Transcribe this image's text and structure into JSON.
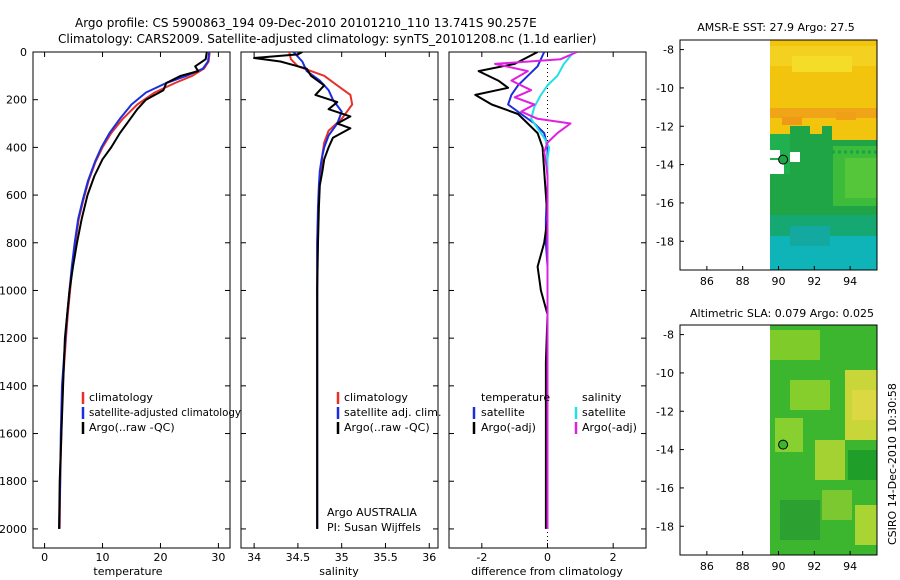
{
  "header": {
    "line1": "Argo profile: CS 5900863_194 09-Dec-2010 20101210_110 13.741S 90.257E",
    "line2": "Climatology: CARS2009. Satellite-adjusted climatology: synTS_20101208.nc (1.1d earlier)"
  },
  "footer": {
    "org": "Argo AUSTRALIA",
    "pi": "PI: Susan Wijffels",
    "stamp": "CSIRO 14-Dec-2010 10:30:58"
  },
  "colors": {
    "clim": "#e8302a",
    "sat": "#1a2ee0",
    "argo": "#000000",
    "salsat": "#22e0ea",
    "salargo": "#e020e0"
  },
  "chart_data": [
    {
      "id": "temperature",
      "type": "line",
      "xlabel": "temperature",
      "xlim": [
        -2,
        32
      ],
      "ylim": [
        0,
        2080
      ],
      "xticks": [
        0,
        10,
        20,
        30
      ],
      "yticks": [
        0,
        200,
        400,
        600,
        800,
        1000,
        1200,
        1400,
        1600,
        1800,
        2000
      ],
      "legend": [
        "climatology",
        "satellite-adjusted climatology",
        "Argo(..raw -QC)"
      ],
      "series": [
        {
          "name": "climatology",
          "color": "clim",
          "x": [
            28.5,
            28.3,
            27.5,
            25.5,
            22.5,
            19,
            16,
            13.5,
            11.5,
            10,
            8.8,
            7.6,
            6.7,
            5.9,
            5.3,
            4.8,
            4.4,
            4,
            3.7,
            3.4,
            3.1,
            2.9,
            2.7,
            2.6
          ],
          "y": [
            0,
            40,
            70,
            100,
            130,
            170,
            220,
            280,
            340,
            400,
            460,
            540,
            620,
            700,
            800,
            900,
            1000,
            1100,
            1200,
            1300,
            1400,
            1600,
            1800,
            2000
          ]
        },
        {
          "name": "satellite-adjusted climatology",
          "color": "sat",
          "x": [
            28.4,
            28.2,
            27.3,
            24.5,
            21,
            17.5,
            15,
            13,
            11.2,
            9.8,
            8.7,
            7.5,
            6.6,
            5.8,
            5.2,
            4.7,
            4.3,
            3.9,
            3.6,
            3.3,
            3,
            2.8,
            2.7,
            2.5
          ],
          "y": [
            0,
            40,
            70,
            100,
            130,
            170,
            220,
            280,
            340,
            400,
            460,
            540,
            620,
            700,
            800,
            900,
            1000,
            1100,
            1200,
            1300,
            1400,
            1600,
            1800,
            2000
          ]
        },
        {
          "name": "Argo(..raw -QC)",
          "color": "argo",
          "x": [
            28,
            27.8,
            26,
            26.5,
            23.5,
            21,
            20.5,
            17.5,
            16,
            14.5,
            13,
            11.5,
            10,
            8.6,
            7.4,
            6.4,
            5.6,
            4.9,
            4.3,
            3.9,
            3.5,
            3.2,
            2.9,
            2.6,
            2.5
          ],
          "y": [
            0,
            30,
            60,
            80,
            100,
            130,
            160,
            200,
            240,
            290,
            340,
            400,
            450,
            520,
            600,
            700,
            800,
            900,
            1000,
            1100,
            1200,
            1400,
            1600,
            1800,
            2000
          ]
        }
      ]
    },
    {
      "id": "salinity",
      "type": "line",
      "xlabel": "salinity",
      "xlim": [
        33.85,
        36.1
      ],
      "ylim": [
        0,
        2080
      ],
      "xticks": [
        34,
        34.5,
        35,
        35.5,
        36
      ],
      "xticklabels": [
        "34",
        "34.5",
        "35",
        "35.5",
        "36"
      ],
      "legend": [
        "climatology",
        "satellite adj. clim.",
        "Argo(..raw -QC)"
      ],
      "series": [
        {
          "name": "climatology",
          "color": "clim",
          "x": [
            34.4,
            34.42,
            34.5,
            34.8,
            34.95,
            35.1,
            35.12,
            35,
            34.85,
            34.8,
            34.78,
            34.77,
            34.75,
            34.74,
            34.73,
            34.72,
            34.72,
            34.72,
            34.72,
            34.72,
            34.72,
            34.72,
            34.72,
            34.72
          ],
          "y": [
            0,
            30,
            60,
            100,
            140,
            180,
            220,
            280,
            330,
            380,
            430,
            480,
            530,
            600,
            700,
            800,
            900,
            1000,
            1200,
            1400,
            1600,
            1800,
            1900,
            2000
          ]
        },
        {
          "name": "satellite adj. clim.",
          "color": "sat",
          "x": [
            34.45,
            34.55,
            34.6,
            34.75,
            34.85,
            34.9,
            35,
            34.95,
            34.85,
            34.8,
            34.77,
            34.75,
            34.74,
            34.73,
            34.72,
            34.72,
            34.72,
            34.72,
            34.72,
            34.72,
            34.72
          ],
          "y": [
            0,
            40,
            80,
            120,
            160,
            200,
            250,
            300,
            350,
            400,
            450,
            500,
            560,
            650,
            800,
            1000,
            1200,
            1400,
            1600,
            1800,
            2000
          ]
        },
        {
          "name": "Argo(..raw -QC)",
          "color": "argo",
          "x": [
            34.55,
            34.5,
            34.0,
            34.3,
            34.6,
            34.65,
            34.8,
            34.7,
            34.95,
            34.85,
            35.1,
            34.95,
            35.1,
            34.9,
            34.85,
            34.8,
            34.78,
            34.75,
            34.74,
            34.73,
            34.72,
            34.72,
            34.72,
            34.72
          ],
          "y": [
            0,
            10,
            25,
            40,
            70,
            100,
            140,
            180,
            210,
            240,
            270,
            300,
            320,
            360,
            400,
            450,
            500,
            560,
            650,
            800,
            1000,
            1200,
            1600,
            2000
          ]
        }
      ]
    },
    {
      "id": "difference",
      "type": "line",
      "xlabel": "difference from climatology",
      "xlim": [
        -3,
        3
      ],
      "ylim": [
        0,
        2080
      ],
      "xticks": [
        -2,
        0,
        2
      ],
      "legend_temperature": {
        "title": "temperature",
        "items": [
          "satellite",
          "Argo(-adj)"
        ]
      },
      "legend_salinity": {
        "title": "salinity",
        "items": [
          "satellite",
          "Argo(-adj)"
        ]
      },
      "series": [
        {
          "name": "temperature satellite",
          "color": "sat",
          "x": [
            -0.1,
            -0.3,
            -0.6,
            -0.9,
            -1.1,
            -1.2,
            -0.8,
            -0.4,
            -0.1,
            0,
            0,
            0,
            -0.05,
            -0.05,
            0,
            0,
            0,
            0,
            0,
            0
          ],
          "y": [
            0,
            60,
            100,
            140,
            180,
            220,
            260,
            300,
            340,
            400,
            480,
            560,
            700,
            800,
            900,
            1000,
            1200,
            1400,
            1600,
            2000
          ]
        },
        {
          "name": "temperature Argo(-adj)",
          "color": "argo",
          "x": [
            -0.3,
            -1,
            -2.1,
            -1.5,
            -1.2,
            -2.2,
            -1.7,
            -0.9,
            -0.6,
            -0.3,
            -0.15,
            -0.1,
            -0.05,
            0,
            -0.1,
            -0.3,
            -0.2,
            0,
            -0.05,
            -0.05,
            -0.05,
            -0.05
          ],
          "y": [
            0,
            50,
            80,
            120,
            150,
            180,
            220,
            260,
            300,
            340,
            400,
            500,
            600,
            700,
            800,
            900,
            1000,
            1100,
            1300,
            1600,
            1800,
            2000
          ]
        },
        {
          "name": "salinity satellite",
          "color": "salsat",
          "x": [
            0.8,
            0.5,
            0.3,
            0.0,
            -0.2,
            -0.4,
            -0.5,
            -0.3,
            -0.1,
            0.05,
            0,
            0,
            0,
            0,
            0,
            0,
            0
          ],
          "y": [
            0,
            50,
            100,
            140,
            180,
            230,
            280,
            320,
            360,
            400,
            450,
            500,
            700,
            1000,
            1400,
            1800,
            2000
          ]
        },
        {
          "name": "salinity Argo(-adj)",
          "color": "salargo",
          "x": [
            0.9,
            0.4,
            -1.6,
            -0.6,
            -1.1,
            -0.5,
            -1.0,
            -0.4,
            -0.8,
            -0.3,
            0.7,
            0.3,
            0,
            -0.1,
            -0.05,
            0,
            0,
            0,
            0
          ],
          "y": [
            0,
            30,
            50,
            80,
            120,
            160,
            190,
            220,
            250,
            280,
            300,
            340,
            380,
            420,
            460,
            520,
            800,
            1500,
            2000
          ]
        }
      ]
    }
  ],
  "maps": [
    {
      "id": "sst",
      "title": "AMSR-E SST: 27.9 Argo: 27.5",
      "xlim": [
        84.5,
        95.5
      ],
      "ylim": [
        -19.5,
        -7.5
      ],
      "xticks": [
        86,
        88,
        90,
        92,
        94
      ],
      "yticks": [
        -8,
        -10,
        -12,
        -14,
        -16,
        -18
      ],
      "marker": {
        "lon": 90.257,
        "lat": -13.741
      }
    },
    {
      "id": "sla",
      "title": "Altimetric SLA: 0.079 Argo: 0.025",
      "xlim": [
        84.5,
        95.5
      ],
      "ylim": [
        -19.5,
        -7.5
      ],
      "xticks": [
        86,
        88,
        90,
        92,
        94
      ],
      "yticks": [
        -8,
        -10,
        -12,
        -14,
        -16,
        -18
      ],
      "marker": {
        "lon": 90.257,
        "lat": -13.741
      }
    }
  ]
}
